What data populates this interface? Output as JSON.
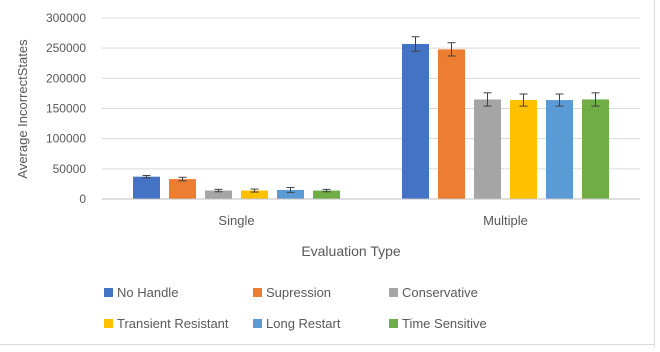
{
  "chart_data": {
    "type": "bar",
    "title": "",
    "xlabel": "Evaluation Type",
    "ylabel": "Average IncorrectStates",
    "categories": [
      "Single",
      "Multiple"
    ],
    "ylim": [
      0,
      300000
    ],
    "yticks": [
      "0",
      "50000",
      "100000",
      "150000",
      "200000",
      "250000",
      "300000"
    ],
    "grid": true,
    "legend_position": "bottom",
    "series": [
      {
        "name": "No Handle",
        "color": "#4472c4",
        "values": [
          37000,
          257000
        ],
        "errors": [
          2000,
          12000
        ]
      },
      {
        "name": "Supression",
        "color": "#ed7d31",
        "values": [
          33000,
          248000
        ],
        "errors": [
          3000,
          11000
        ]
      },
      {
        "name": "Conservative",
        "color": "#a5a5a5",
        "values": [
          14000,
          165000
        ],
        "errors": [
          2000,
          11000
        ]
      },
      {
        "name": "Transient Resistant",
        "color": "#ffc000",
        "values": [
          14000,
          164000
        ],
        "errors": [
          2500,
          10000
        ]
      },
      {
        "name": "Long Restart",
        "color": "#5b9bd5",
        "values": [
          15000,
          164000
        ],
        "errors": [
          4000,
          10000
        ]
      },
      {
        "name": "Time Sensitive",
        "color": "#70ad47",
        "values": [
          14000,
          165000
        ],
        "errors": [
          2000,
          11000
        ]
      }
    ]
  }
}
